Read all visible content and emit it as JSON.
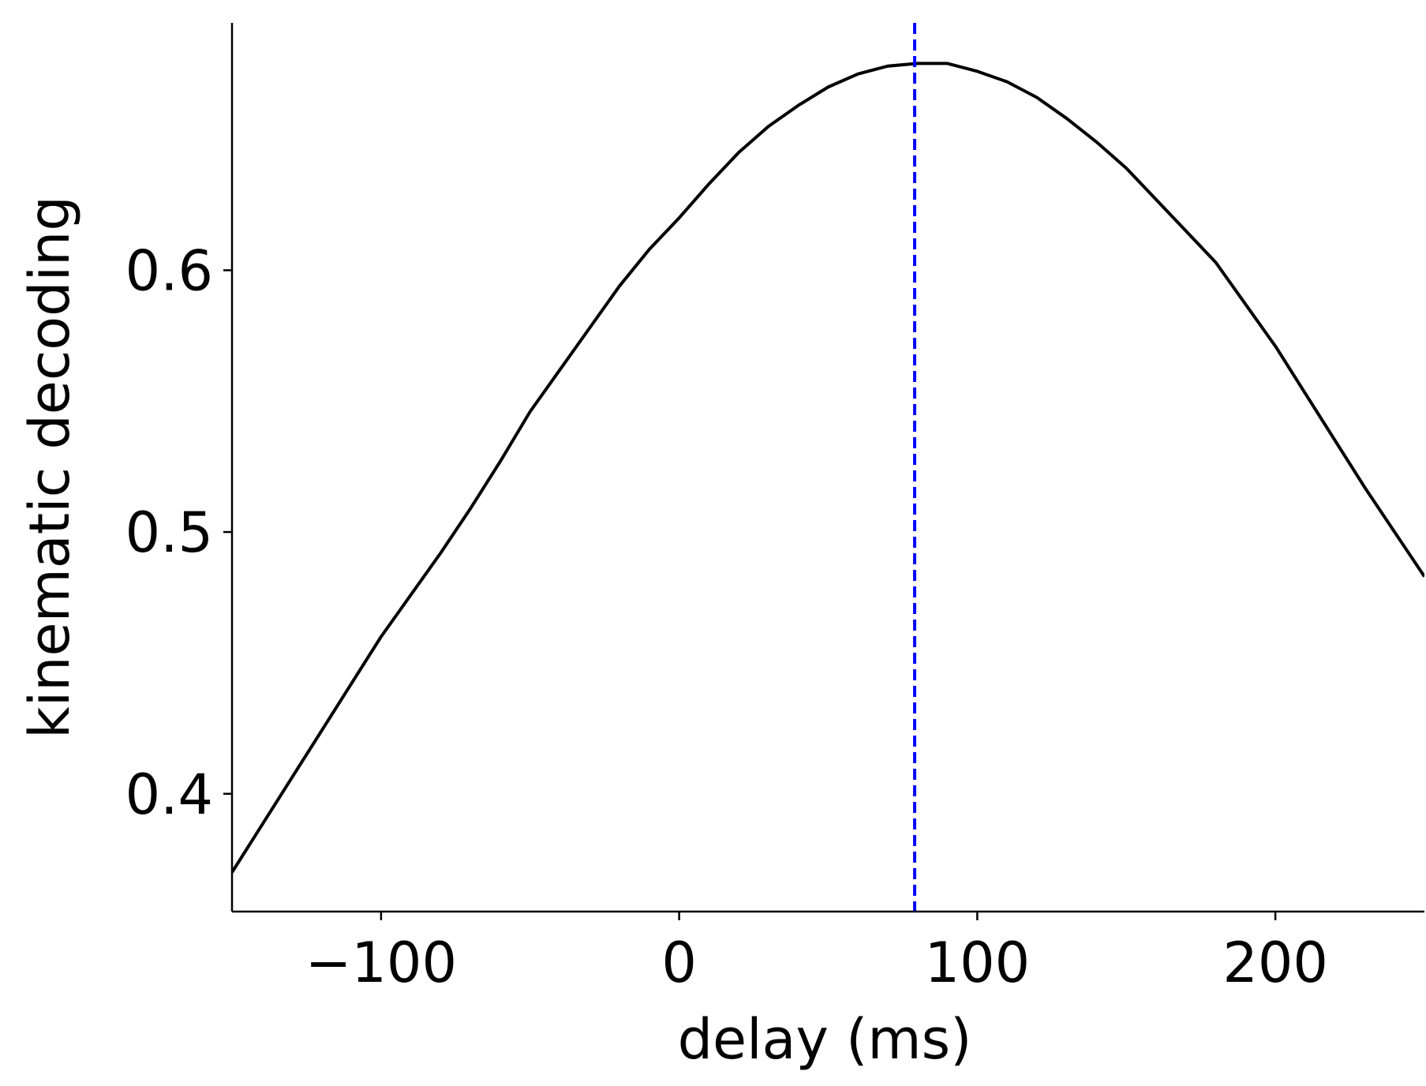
{
  "chart_data": {
    "type": "line",
    "x_label": "delay (ms)",
    "y_label": "kinematic decoding",
    "x": [
      -150,
      -140,
      -130,
      -120,
      -110,
      -100,
      -90,
      -80,
      -70,
      -60,
      -50,
      -40,
      -30,
      -20,
      -10,
      0,
      10,
      20,
      30,
      40,
      50,
      60,
      70,
      80,
      90,
      100,
      110,
      120,
      130,
      140,
      150,
      160,
      170,
      180,
      190,
      200,
      210,
      220,
      230,
      240,
      250
    ],
    "series": [
      {
        "color": "#000000",
        "values": [
          0.37,
          0.388,
          0.406,
          0.424,
          0.442,
          0.46,
          0.476,
          0.492,
          0.509,
          0.527,
          0.546,
          0.562,
          0.578,
          0.594,
          0.608,
          0.62,
          0.633,
          0.645,
          0.655,
          0.663,
          0.67,
          0.675,
          0.678,
          0.679,
          0.679,
          0.676,
          0.672,
          0.666,
          0.658,
          0.649,
          0.639,
          0.627,
          0.615,
          0.603,
          0.587,
          0.571,
          0.553,
          0.535,
          0.517,
          0.5,
          0.483
        ]
      }
    ],
    "vline": {
      "x": 79,
      "color": "#0000ff",
      "dashed": true
    },
    "xlim": [
      -150,
      250
    ],
    "ylim": [
      0.355,
      0.6945
    ],
    "xticks": [
      {
        "value": -100,
        "label": "−100"
      },
      0,
      100,
      200
    ],
    "yticks": [
      0.4,
      0.5,
      0.6
    ]
  }
}
